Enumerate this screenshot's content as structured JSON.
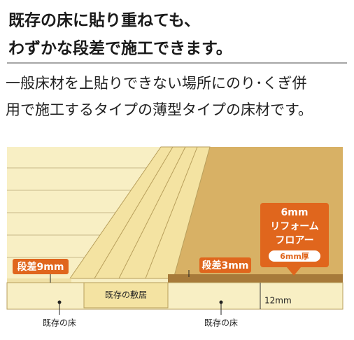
{
  "header": {
    "lines": [
      "既存の床に貼り重ねても、",
      "わずかな段差で施工できます。"
    ]
  },
  "body": {
    "lines": [
      "一般床材を上貼りできない場所にのり･くぎ併",
      "用で施工するタイプの薄型タイプの床材です。"
    ]
  },
  "diagram": {
    "step_left": "段差9mm",
    "step_right": "段差3mm",
    "threshold": "既存の敷居",
    "thickness": "12mm",
    "floor_left": "既存の床",
    "floor_right": "既存の床",
    "callout": {
      "lines": [
        "6mm",
        "リフォーム",
        "フロアー"
      ],
      "badge": "6mm厚"
    }
  }
}
